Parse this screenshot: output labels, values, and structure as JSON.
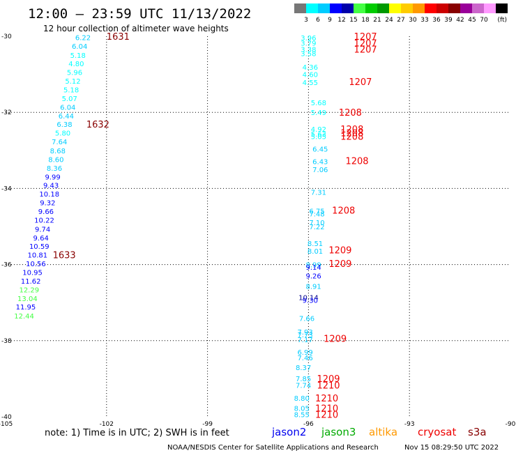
{
  "title": "12:00 — 23:59 UTC 11/13/2022",
  "subtitle": "12 hour collection of altimeter wave heights",
  "note": "note:  1) Time is in UTC; 2) SWH is in feet",
  "credit": "NOAA/NESDIS Center for Satellite Applications and Research",
  "timestamp": "Nov 15 08:29:50 UTC 2022",
  "satellites": [
    {
      "name": "jason2",
      "color": "#0000ee"
    },
    {
      "name": "jason3",
      "color": "#00aa00"
    },
    {
      "name": "altika",
      "color": "#ff9900"
    },
    {
      "name": "cryosat",
      "color": "#ee0000"
    },
    {
      "name": "s3a",
      "color": "#880000"
    }
  ],
  "colorbar": {
    "colors": [
      "#777777",
      "#00ffff",
      "#00ccff",
      "#0000ff",
      "#0000aa",
      "#44ff44",
      "#00cc00",
      "#009900",
      "#ffff00",
      "#ffcc00",
      "#ff9900",
      "#ff0000",
      "#cc0000",
      "#880000",
      "#990099",
      "#cc66cc",
      "#ff99ff",
      "#000000"
    ],
    "labels": [
      "3",
      "6",
      "9",
      "12",
      "15",
      "18",
      "21",
      "24",
      "27",
      "30",
      "33",
      "36",
      "39",
      "42",
      "45",
      "70"
    ],
    "unit": "(ft)"
  },
  "chart_data": {
    "type": "scatter",
    "xlim": [
      -105,
      -90
    ],
    "ylim": [
      -40,
      -30
    ],
    "x_ticks": [
      -105,
      -102,
      -99,
      -96,
      -93,
      -90
    ],
    "y_ticks": [
      -30,
      -32,
      -34,
      -36,
      -38,
      -40
    ],
    "grid": "dotted",
    "wave_heights": [
      {
        "lon": -102.7,
        "lat": -30.03,
        "swh": "6.22",
        "color": "#00ccff"
      },
      {
        "lon": -102.8,
        "lat": -30.26,
        "swh": "6.04",
        "color": "#00ccff"
      },
      {
        "lon": -102.85,
        "lat": -30.49,
        "swh": "5.18",
        "color": "#00ffff"
      },
      {
        "lon": -102.9,
        "lat": -30.71,
        "swh": "4.80",
        "color": "#00ffff"
      },
      {
        "lon": -102.95,
        "lat": -30.94,
        "swh": "5.96",
        "color": "#00ffff"
      },
      {
        "lon": -103.0,
        "lat": -31.17,
        "swh": "5.12",
        "color": "#00ffff"
      },
      {
        "lon": -103.05,
        "lat": -31.4,
        "swh": "5.18",
        "color": "#00ffff"
      },
      {
        "lon": -103.1,
        "lat": -31.63,
        "swh": "5.07",
        "color": "#00ffff"
      },
      {
        "lon": -103.15,
        "lat": -31.86,
        "swh": "6.04",
        "color": "#00ccff"
      },
      {
        "lon": -103.2,
        "lat": -32.09,
        "swh": "6.44",
        "color": "#00ccff"
      },
      {
        "lon": -103.25,
        "lat": -32.31,
        "swh": "6.38",
        "color": "#00ccff"
      },
      {
        "lon": -103.3,
        "lat": -32.54,
        "swh": "5.80",
        "color": "#00ffff"
      },
      {
        "lon": -103.4,
        "lat": -32.77,
        "swh": "7.64",
        "color": "#00ccff"
      },
      {
        "lon": -103.45,
        "lat": -33.0,
        "swh": "8.68",
        "color": "#00ccff"
      },
      {
        "lon": -103.5,
        "lat": -33.23,
        "swh": "8.60",
        "color": "#00ccff"
      },
      {
        "lon": -103.55,
        "lat": -33.46,
        "swh": "8.36",
        "color": "#00ccff"
      },
      {
        "lon": -103.6,
        "lat": -33.69,
        "swh": "9.99",
        "color": "#0000ff"
      },
      {
        "lon": -103.65,
        "lat": -33.91,
        "swh": "9.43",
        "color": "#0000ff"
      },
      {
        "lon": -103.7,
        "lat": -34.14,
        "swh": "10.18",
        "color": "#0000ff"
      },
      {
        "lon": -103.75,
        "lat": -34.37,
        "swh": "9.32",
        "color": "#0000ff"
      },
      {
        "lon": -103.8,
        "lat": -34.6,
        "swh": "9.66",
        "color": "#0000ff"
      },
      {
        "lon": -103.85,
        "lat": -34.83,
        "swh": "10.22",
        "color": "#0000ff"
      },
      {
        "lon": -103.9,
        "lat": -35.06,
        "swh": "9.74",
        "color": "#0000ff"
      },
      {
        "lon": -103.95,
        "lat": -35.29,
        "swh": "9.64",
        "color": "#0000ff"
      },
      {
        "lon": -104.0,
        "lat": -35.51,
        "swh": "10.59",
        "color": "#0000ff"
      },
      {
        "lon": -104.05,
        "lat": -35.74,
        "swh": "10.81",
        "color": "#0000ff"
      },
      {
        "lon": -104.1,
        "lat": -35.97,
        "swh": "10.56",
        "color": "#0000ff"
      },
      {
        "lon": -104.2,
        "lat": -36.2,
        "swh": "10.95",
        "color": "#0000ff"
      },
      {
        "lon": -104.25,
        "lat": -36.43,
        "swh": "11.62",
        "color": "#0000ff"
      },
      {
        "lon": -104.3,
        "lat": -36.66,
        "swh": "12.29",
        "color": "#44ff44"
      },
      {
        "lon": -104.35,
        "lat": -36.89,
        "swh": "13.04",
        "color": "#44ff44"
      },
      {
        "lon": -104.4,
        "lat": -37.11,
        "swh": "11.95",
        "color": "#0000ff"
      },
      {
        "lon": -104.45,
        "lat": -37.34,
        "swh": "12.44",
        "color": "#44ff44"
      },
      {
        "lon": -96.0,
        "lat": -30.04,
        "swh": "3.96",
        "color": "#00ffff"
      },
      {
        "lon": -96.0,
        "lat": -30.17,
        "swh": "3.79",
        "color": "#00ffff"
      },
      {
        "lon": -96.0,
        "lat": -30.34,
        "swh": "3.38",
        "color": "#00ffff"
      },
      {
        "lon": -96.0,
        "lat": -30.45,
        "swh": "3.58",
        "color": "#00ffff"
      },
      {
        "lon": -95.95,
        "lat": -30.81,
        "swh": "4.36",
        "color": "#00ffff"
      },
      {
        "lon": -95.95,
        "lat": -31.0,
        "swh": "4.60",
        "color": "#00ffff"
      },
      {
        "lon": -95.95,
        "lat": -31.21,
        "swh": "4.55",
        "color": "#00ffff"
      },
      {
        "lon": -95.7,
        "lat": -31.74,
        "swh": "5.68",
        "color": "#00ffff"
      },
      {
        "lon": -95.7,
        "lat": -32.0,
        "swh": "5.49",
        "color": "#00ffff"
      },
      {
        "lon": -95.7,
        "lat": -32.44,
        "swh": "4.92",
        "color": "#00ffff"
      },
      {
        "lon": -95.7,
        "lat": -32.56,
        "swh": "5.63",
        "color": "#00ffff"
      },
      {
        "lon": -95.7,
        "lat": -32.63,
        "swh": "5.05",
        "color": "#00ffff"
      },
      {
        "lon": -95.65,
        "lat": -32.96,
        "swh": "6.45",
        "color": "#00ccff"
      },
      {
        "lon": -95.65,
        "lat": -33.29,
        "swh": "6.43",
        "color": "#00ccff"
      },
      {
        "lon": -95.65,
        "lat": -33.5,
        "swh": "7.06",
        "color": "#00ccff"
      },
      {
        "lon": -95.7,
        "lat": -34.09,
        "swh": "7.31",
        "color": "#00ccff"
      },
      {
        "lon": -95.75,
        "lat": -34.59,
        "swh": "6.75",
        "color": "#00ccff"
      },
      {
        "lon": -95.75,
        "lat": -34.66,
        "swh": "7.48",
        "color": "#00ccff"
      },
      {
        "lon": -95.75,
        "lat": -34.89,
        "swh": "7.10",
        "color": "#00ccff"
      },
      {
        "lon": -95.75,
        "lat": -35.0,
        "swh": "7.22",
        "color": "#00ccff"
      },
      {
        "lon": -95.8,
        "lat": -35.44,
        "swh": "8.51",
        "color": "#00ccff"
      },
      {
        "lon": -95.8,
        "lat": -35.64,
        "swh": "8.01",
        "color": "#00ccff"
      },
      {
        "lon": -95.85,
        "lat": -36.0,
        "swh": "8.99",
        "color": "#00ccff"
      },
      {
        "lon": -95.85,
        "lat": -36.06,
        "swh": "9.14",
        "color": "#0000ff"
      },
      {
        "lon": -95.85,
        "lat": -36.29,
        "swh": "9.26",
        "color": "#0000ff"
      },
      {
        "lon": -95.85,
        "lat": -36.57,
        "swh": "8.91",
        "color": "#00ccff"
      },
      {
        "lon": -96.0,
        "lat": -36.86,
        "swh": "10.14",
        "color": "#000088"
      },
      {
        "lon": -95.95,
        "lat": -36.93,
        "swh": "9.30",
        "color": "#0000ff"
      },
      {
        "lon": -96.05,
        "lat": -37.41,
        "swh": "7.66",
        "color": "#00ccff"
      },
      {
        "lon": -96.1,
        "lat": -37.77,
        "swh": "7.93",
        "color": "#00ccff"
      },
      {
        "lon": -96.1,
        "lat": -37.84,
        "swh": "7.73",
        "color": "#00ccff"
      },
      {
        "lon": -96.1,
        "lat": -37.97,
        "swh": "7.17",
        "color": "#00ccff"
      },
      {
        "lon": -96.1,
        "lat": -38.3,
        "swh": "6.99",
        "color": "#00ccff"
      },
      {
        "lon": -96.1,
        "lat": -38.44,
        "swh": "7.46",
        "color": "#00ccff"
      },
      {
        "lon": -96.15,
        "lat": -38.7,
        "swh": "8.37",
        "color": "#00ccff"
      },
      {
        "lon": -96.15,
        "lat": -38.99,
        "swh": "7.85",
        "color": "#00ccff"
      },
      {
        "lon": -96.15,
        "lat": -39.17,
        "swh": "7.74",
        "color": "#00ccff"
      },
      {
        "lon": -96.2,
        "lat": -39.51,
        "swh": "8.80",
        "color": "#00ccff"
      },
      {
        "lon": -96.2,
        "lat": -39.77,
        "swh": "8.05",
        "color": "#00ccff"
      },
      {
        "lon": -96.2,
        "lat": -39.94,
        "swh": "8.55",
        "color": "#00ccff"
      }
    ],
    "time_labels": [
      {
        "lon": -102.0,
        "lat": -30.0,
        "text": "1631",
        "color": "#880000"
      },
      {
        "lon": -102.6,
        "lat": -32.31,
        "swh": null,
        "text": "1632",
        "color": "#880000"
      },
      {
        "lon": -103.6,
        "lat": -35.74,
        "text": "1633",
        "color": "#880000"
      },
      {
        "lon": -94.65,
        "lat": -30.0,
        "text": "1207",
        "color": "#ee0000"
      },
      {
        "lon": -94.65,
        "lat": -30.17,
        "text": "1207",
        "color": "#ee0000"
      },
      {
        "lon": -94.65,
        "lat": -30.34,
        "text": "1207",
        "color": "#ee0000"
      },
      {
        "lon": -94.8,
        "lat": -31.19,
        "text": "1207",
        "color": "#ee0000"
      },
      {
        "lon": -95.1,
        "lat": -32.0,
        "text": "1208",
        "color": "#ee0000"
      },
      {
        "lon": -95.05,
        "lat": -32.44,
        "text": "1208",
        "color": "#ee0000"
      },
      {
        "lon": -95.05,
        "lat": -32.54,
        "text": "1208",
        "color": "#ee0000"
      },
      {
        "lon": -95.05,
        "lat": -32.63,
        "text": "1208",
        "color": "#ee0000"
      },
      {
        "lon": -94.9,
        "lat": -33.27,
        "text": "1208",
        "color": "#ee0000"
      },
      {
        "lon": -95.3,
        "lat": -34.57,
        "text": "1208",
        "color": "#ee0000"
      },
      {
        "lon": -95.4,
        "lat": -35.61,
        "text": "1209",
        "color": "#ee0000"
      },
      {
        "lon": -95.4,
        "lat": -35.97,
        "text": "1209",
        "color": "#ee0000"
      },
      {
        "lon": -95.55,
        "lat": -37.94,
        "text": "1209",
        "color": "#ee0000"
      },
      {
        "lon": -95.75,
        "lat": -38.99,
        "text": "1209",
        "color": "#ee0000"
      },
      {
        "lon": -95.75,
        "lat": -39.17,
        "text": "1210",
        "color": "#ee0000"
      },
      {
        "lon": -95.8,
        "lat": -39.51,
        "text": "1210",
        "color": "#ee0000"
      },
      {
        "lon": -95.8,
        "lat": -39.77,
        "text": "1210",
        "color": "#ee0000"
      },
      {
        "lon": -95.8,
        "lat": -39.94,
        "text": "1210",
        "color": "#ee0000"
      }
    ]
  }
}
